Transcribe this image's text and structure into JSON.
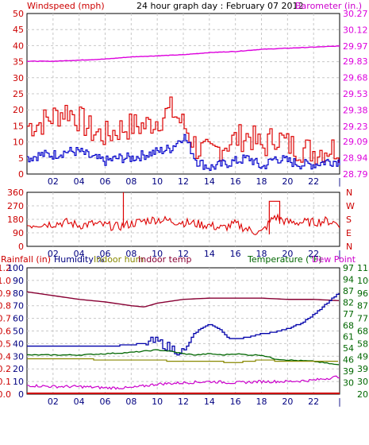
{
  "header": {
    "wind_label": "Windspeed (mph)",
    "title": "24 hour graph day : February 07 2012",
    "baro_label": "Barometer (in.)"
  },
  "panel3_header": {
    "rainfall": "Rainfall (in)",
    "humidity": "Humidity %",
    "indoor_hum": "Indoor hum",
    "indoor_temp": "Indoor temp",
    "temperature": "Temperature (°F)",
    "dew_point": "Dew Point"
  },
  "colors": {
    "wind_gust": "#dd0000",
    "wind_avg": "#0000cc",
    "barometer": "#dd00dd",
    "direction": "#dd0000",
    "humidity": "#0000aa",
    "indoor_hum": "#888800",
    "indoor_temp": "#880033",
    "temperature": "#006600",
    "dew_point": "#cc00cc",
    "rainfall": "#cc0000",
    "axis_red": "#cc0000",
    "axis_green": "#006600",
    "axis_navy": "#000080",
    "grid": "#c8c8c8"
  },
  "chart_data": [
    {
      "type": "line",
      "panel": "wind_barometer",
      "title": "24 hour graph day : February 07 2012",
      "x_ticks": [
        "02",
        "04",
        "06",
        "08",
        "10",
        "12",
        "14",
        "16",
        "18",
        "20",
        "22",
        "|"
      ],
      "y_left": {
        "label": "Windspeed (mph)",
        "ticks": [
          0,
          5,
          10,
          15,
          20,
          25,
          30,
          35,
          40,
          45,
          50
        ],
        "range": [
          0,
          50
        ]
      },
      "y_right": {
        "label": "Barometer (in.)",
        "ticks": [
          "28.79",
          "28.94",
          "29.09",
          "29.23",
          "29.38",
          "29.53",
          "29.68",
          "29.83",
          "29.97",
          "30.12",
          "30.27"
        ],
        "range": [
          28.79,
          30.27
        ]
      },
      "series": [
        {
          "key": "gust",
          "hours": [
            0,
            1,
            2,
            3,
            4,
            5,
            6,
            7,
            8,
            9,
            10,
            11,
            12,
            13,
            14,
            15,
            16,
            17,
            18,
            19,
            20,
            21,
            22,
            23,
            24
          ],
          "values": [
            15,
            16,
            18,
            20,
            17,
            13,
            12,
            14,
            15,
            15,
            17,
            20,
            15,
            8,
            6,
            9,
            11,
            12,
            8,
            12,
            9,
            8,
            7,
            8,
            8
          ]
        },
        {
          "key": "average",
          "hours": [
            0,
            1,
            2,
            3,
            4,
            5,
            6,
            7,
            8,
            9,
            10,
            11,
            12,
            13,
            14,
            15,
            16,
            17,
            18,
            19,
            20,
            21,
            22,
            23,
            24
          ],
          "values": [
            5,
            6,
            6,
            7,
            7,
            5,
            4,
            5,
            5,
            6,
            7,
            8,
            12,
            4,
            2,
            3,
            4,
            5,
            2,
            5,
            4,
            3,
            3,
            4,
            4
          ]
        },
        {
          "key": "barometer",
          "hours": [
            0,
            2,
            4,
            6,
            8,
            10,
            12,
            14,
            16,
            18,
            20,
            22,
            24
          ],
          "values": [
            29.83,
            29.83,
            29.84,
            29.85,
            29.87,
            29.88,
            29.89,
            29.91,
            29.92,
            29.94,
            29.95,
            29.96,
            29.97
          ]
        }
      ]
    },
    {
      "type": "line",
      "panel": "wind_direction",
      "x_ticks": [
        "02",
        "04",
        "06",
        "08",
        "10",
        "12",
        "14",
        "16",
        "18",
        "20",
        "22",
        "|"
      ],
      "y_left": {
        "ticks": [
          0,
          90,
          180,
          270,
          360
        ],
        "range": [
          0,
          360
        ]
      },
      "y_right": {
        "ticks": [
          "N",
          "E",
          "S",
          "W",
          "N"
        ]
      },
      "series": [
        {
          "key": "direction",
          "hours": [
            0,
            1,
            2,
            3,
            4,
            5,
            6,
            7,
            8,
            9,
            10,
            11,
            12,
            13,
            14,
            15,
            16,
            17,
            18,
            19,
            20,
            21,
            22,
            23,
            24
          ],
          "values": [
            140,
            150,
            150,
            160,
            140,
            150,
            140,
            130,
            150,
            170,
            180,
            170,
            160,
            150,
            140,
            120,
            150,
            110,
            90,
            200,
            160,
            160,
            160,
            170,
            150
          ]
        }
      ]
    },
    {
      "type": "line",
      "panel": "temperature_humidity",
      "x_ticks": [
        "02",
        "04",
        "06",
        "08",
        "10",
        "12",
        "14",
        "16",
        "18",
        "20",
        "22",
        "|"
      ],
      "y_left_outer": {
        "label": "Rainfall (in)",
        "ticks": [
          "0.0",
          "0.1",
          "0.2",
          "0.4",
          "0.5",
          "0.6",
          "0.7",
          "0.8",
          "0.9",
          "1.0",
          "1.2"
        ]
      },
      "y_left_inner": {
        "label": "Humidity %",
        "ticks": [
          0,
          10,
          20,
          30,
          40,
          50,
          60,
          70,
          80,
          90,
          100
        ],
        "range": [
          0,
          100
        ]
      },
      "y_right_inner": {
        "label": "Temperature (°F)",
        "ticks": [
          20,
          30,
          39,
          46,
          54,
          61,
          68,
          77,
          82,
          87,
          94,
          97
        ],
        "ticks_display": [
          30,
          39,
          46,
          54,
          61,
          68,
          77,
          82,
          87,
          94,
          97
        ],
        "range": [
          20,
          115
        ]
      },
      "y_right_outer": {
        "label": "Dew Point",
        "ticks": [
          20,
          30,
          39,
          49,
          58,
          68,
          77,
          87,
          96,
          106,
          115
        ],
        "range": [
          20,
          115
        ]
      },
      "series": [
        {
          "key": "indoor_temp",
          "hours": [
            0,
            2,
            4,
            6,
            8,
            9,
            10,
            12,
            14,
            16,
            18,
            20,
            22,
            24
          ],
          "values": [
            81,
            78,
            75,
            73,
            70,
            69,
            72,
            75,
            76,
            76,
            76,
            75,
            75,
            74
          ]
        },
        {
          "key": "humidity",
          "hours": [
            0,
            2,
            4,
            6,
            8,
            10,
            11,
            12,
            12.8,
            13.5,
            14,
            14.7,
            15.4,
            16,
            17,
            18,
            19,
            20,
            21,
            22,
            23,
            24
          ],
          "values": [
            38,
            38,
            38,
            38,
            39,
            42,
            36,
            34,
            48,
            53,
            55,
            52,
            44,
            44,
            45,
            48,
            49,
            52,
            56,
            63,
            72,
            81
          ]
        },
        {
          "key": "temperature",
          "hours": [
            0,
            2,
            4,
            6,
            8,
            10,
            11,
            12,
            13,
            14,
            15,
            16,
            17,
            18,
            19,
            20,
            22,
            24
          ],
          "values": [
            31,
            31,
            31,
            32,
            33,
            35,
            34,
            32,
            31,
            32,
            31,
            32,
            31,
            31,
            28,
            27,
            26,
            23
          ]
        },
        {
          "key": "indoor_hum",
          "hours": [
            0,
            2,
            4,
            6,
            8,
            10,
            11,
            12,
            13,
            14,
            16,
            18,
            20,
            22,
            24
          ],
          "values": [
            28,
            28,
            28,
            27,
            27,
            27,
            26,
            26,
            26,
            26,
            25,
            27,
            26,
            26,
            26
          ]
        },
        {
          "key": "dew_point",
          "hours": [
            0,
            2,
            4,
            6,
            8,
            10,
            12,
            14,
            16,
            18,
            20,
            22,
            24
          ],
          "values": [
            7,
            6,
            6,
            5,
            5,
            8,
            9,
            10,
            9,
            10,
            10,
            11,
            14
          ]
        },
        {
          "key": "rainfall",
          "hours": [
            0,
            24
          ],
          "values": [
            0,
            0
          ]
        }
      ]
    }
  ]
}
